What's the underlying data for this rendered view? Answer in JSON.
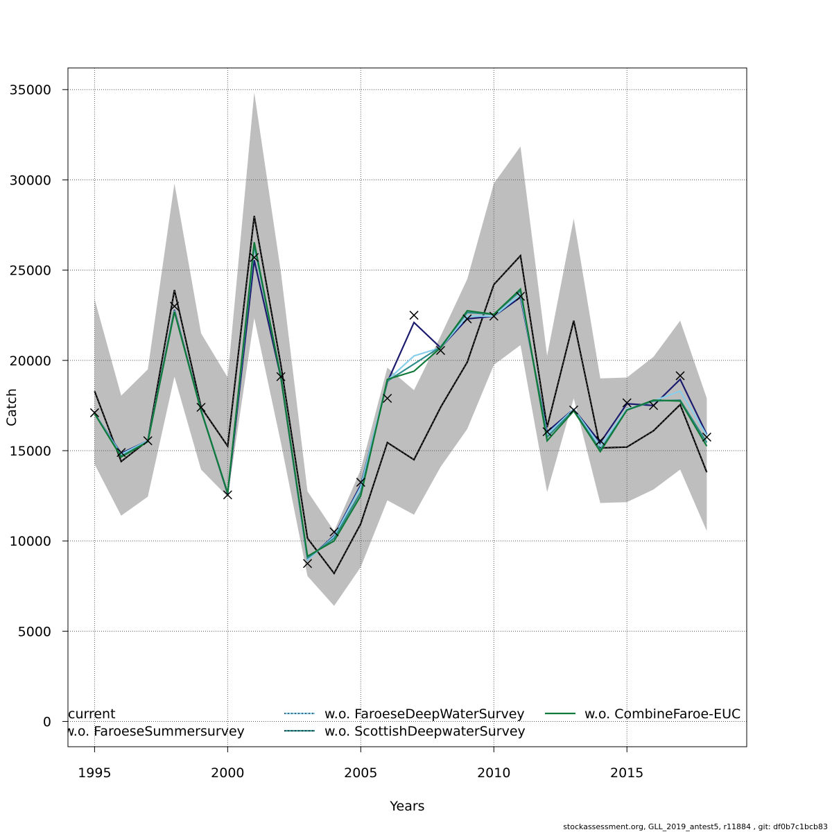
{
  "chart_data": {
    "type": "line",
    "xlabel": "Years",
    "ylabel": "Catch",
    "xlim": [
      1994,
      2019.5
    ],
    "ylim": [
      -1400,
      36200
    ],
    "x_ticks": [
      1995,
      2000,
      2005,
      2010,
      2015
    ],
    "y_ticks": [
      0,
      5000,
      10000,
      15000,
      20000,
      25000,
      30000,
      35000
    ],
    "grid": true,
    "legend_position": "bottom",
    "years": [
      1995,
      1996,
      1997,
      1998,
      1999,
      2000,
      2001,
      2002,
      2003,
      2004,
      2005,
      2006,
      2007,
      2008,
      2009,
      2010,
      2011,
      2012,
      2013,
      2014,
      2015,
      2016,
      2017,
      2018
    ],
    "confidence_band": {
      "color": "#bebebe",
      "lower": [
        14250,
        11400,
        12450,
        19100,
        13950,
        12450,
        22350,
        15450,
        8050,
        6400,
        8550,
        12250,
        11450,
        14100,
        16200,
        19750,
        20850,
        12700,
        17900,
        12100,
        12150,
        12850,
        13950,
        10550
      ],
      "upper": [
        23400,
        18050,
        19500,
        29800,
        21500,
        19050,
        34850,
        24900,
        12750,
        10550,
        13950,
        19600,
        18350,
        21350,
        24500,
        29800,
        31850,
        20250,
        27850,
        19000,
        19050,
        20200,
        22200,
        17900
      ]
    },
    "observed": {
      "marker": "x",
      "color": "#000000",
      "values": [
        17100,
        14900,
        15550,
        23000,
        17400,
        12550,
        25700,
        19100,
        8750,
        10500,
        13250,
        17900,
        22500,
        20550,
        22300,
        22450,
        23550,
        16050,
        17250,
        15550,
        17650,
        17500,
        19150,
        15750
      ]
    },
    "series": [
      {
        "name": "current",
        "color": "#000000",
        "dashed": false,
        "values": [
          18300,
          14400,
          15550,
          23900,
          17400,
          15250,
          28000,
          19750,
          10150,
          8200,
          10950,
          15450,
          14500,
          17400,
          19900,
          24200,
          25800,
          16300,
          22200,
          15150,
          15200,
          16100,
          17550,
          13800
        ]
      },
      {
        "name": "w.o. FaroeseSummersurvey",
        "color": "#1a1a6e",
        "dashed": false,
        "values": [
          17050,
          14850,
          15550,
          22800,
          17250,
          12600,
          25550,
          19050,
          8950,
          10300,
          13100,
          18800,
          22100,
          20700,
          22300,
          22450,
          23500,
          16050,
          17300,
          15450,
          17600,
          17500,
          18950,
          15900
        ]
      },
      {
        "name": "w.o. FaroeseDeepWaterSurvey",
        "color": "#87ceeb",
        "dashed": true,
        "values": [
          17050,
          14800,
          15550,
          22750,
          17250,
          12650,
          26300,
          19150,
          8950,
          10250,
          13000,
          18900,
          20250,
          20700,
          22450,
          22450,
          23650,
          15900,
          17300,
          15250,
          17300,
          17750,
          18300,
          15850
        ]
      },
      {
        "name": "w.o. ScottishDeepwaterSurvey",
        "color": "#2e8b8b",
        "dashed": true,
        "values": [
          17050,
          14700,
          15500,
          22700,
          17250,
          12650,
          26400,
          19100,
          9050,
          10150,
          12700,
          18850,
          19800,
          20750,
          22650,
          22550,
          23850,
          15750,
          17250,
          15050,
          17250,
          17750,
          17800,
          15450
        ]
      },
      {
        "name": "w.o. CombineFaroe-EUC",
        "color": "#117a3a",
        "dashed": false,
        "values": [
          17050,
          14650,
          15500,
          22700,
          17200,
          12650,
          26550,
          19050,
          9150,
          10000,
          12500,
          18950,
          19400,
          20700,
          22750,
          22550,
          23950,
          15550,
          17200,
          14950,
          17250,
          17800,
          17750,
          15250
        ]
      }
    ],
    "footer": "stockassessment.org, GLL_2019_antest5, r11884 , git: df0b7c1bcb83"
  }
}
